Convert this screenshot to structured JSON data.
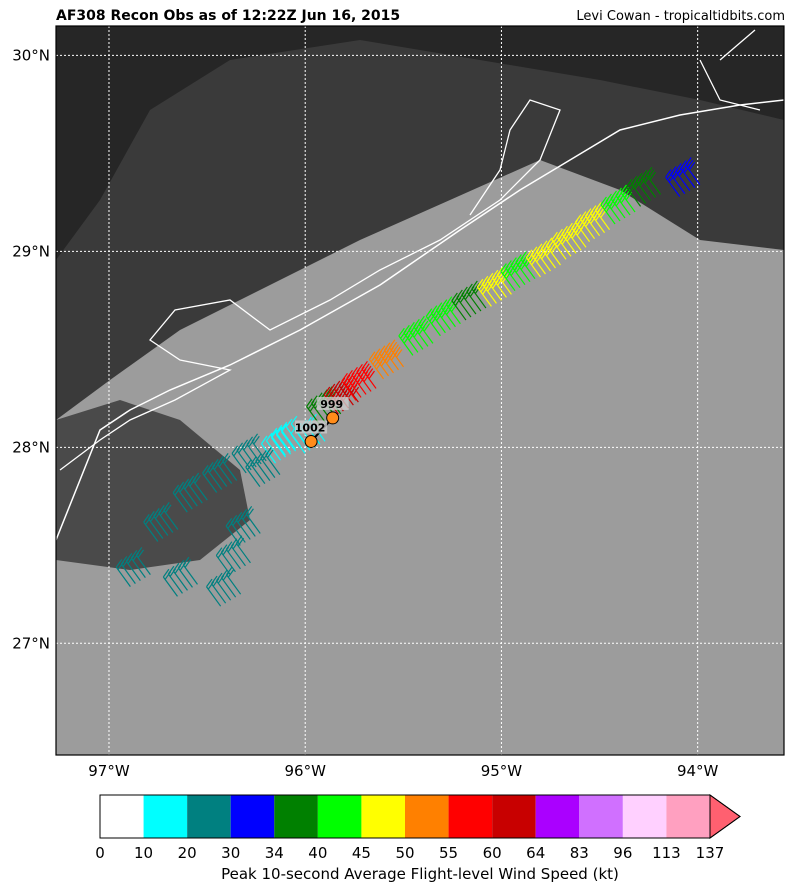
{
  "header": {
    "title": "AF308 Recon Obs as of 12:22Z Jun 16, 2015",
    "credit": "Levi Cowan - tropicaltidbits.com"
  },
  "map": {
    "xlim": [
      -97.27,
      -93.56
    ],
    "ylim": [
      26.43,
      30.15
    ],
    "xticks": [
      {
        "value": -97,
        "label": "97°W"
      },
      {
        "value": -96,
        "label": "96°W"
      },
      {
        "value": -95,
        "label": "95°W"
      },
      {
        "value": -94,
        "label": "94°W"
      }
    ],
    "yticks": [
      {
        "value": 27,
        "label": "27°N"
      },
      {
        "value": 28,
        "label": "28°N"
      },
      {
        "value": 29,
        "label": "29°N"
      },
      {
        "value": 30,
        "label": "30°N"
      }
    ],
    "track": {
      "lon": [
        -95.95,
        -96.1,
        -96.25,
        -96.4,
        -96.55,
        -96.7,
        -96.84,
        -96.6,
        -96.38,
        -96.33,
        -96.28,
        -96.18,
        -96.05,
        -95.87,
        -95.78,
        -95.69,
        -95.55,
        -95.4,
        -95.26,
        -95.13,
        -95.0,
        -94.88,
        -94.75,
        -94.62,
        -94.5,
        -94.37,
        -94.24,
        -94.04
      ],
      "lat": [
        28.0,
        27.95,
        27.9,
        27.8,
        27.7,
        27.55,
        27.32,
        27.27,
        27.22,
        27.38,
        27.53,
        27.83,
        27.99,
        28.14,
        28.2,
        28.27,
        28.38,
        28.5,
        28.6,
        28.68,
        28.75,
        28.83,
        28.9,
        28.99,
        29.08,
        29.17,
        29.26,
        29.31
      ],
      "wind": [
        18,
        15,
        20,
        22,
        24,
        25,
        25,
        26,
        25,
        24,
        25,
        22,
        15,
        38,
        62,
        58,
        50,
        44,
        42,
        36,
        46,
        43,
        47,
        48,
        45,
        40,
        37,
        32
      ]
    },
    "dropsondes": [
      {
        "pressure": 1002,
        "lon": -95.97,
        "lat": 28.03
      },
      {
        "pressure": 999,
        "lon": -95.86,
        "lat": 28.15
      }
    ]
  },
  "colorbar": {
    "bounds": [
      0,
      10,
      20,
      30,
      34,
      40,
      45,
      50,
      55,
      60,
      64,
      83,
      96,
      113,
      137
    ],
    "colors": [
      "#ffffff",
      "#00ffff",
      "#008080",
      "#0000ff",
      "#008000",
      "#00ff00",
      "#ffff00",
      "#ff8000",
      "#ff0000",
      "#c80000",
      "#aa00ff",
      "#d070ff",
      "#ffd0ff",
      "#ffa0c0",
      "#ff6070"
    ],
    "label": "Peak 10-second Average Flight-level Wind Speed (kt)"
  }
}
